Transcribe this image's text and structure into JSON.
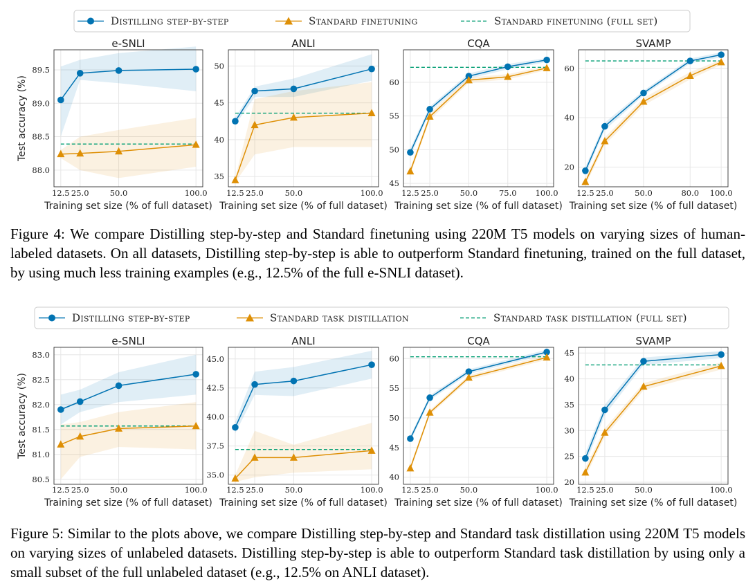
{
  "colors": {
    "distill": "#0173b2",
    "standard": "#de8f05",
    "fullset": "#029e73"
  },
  "captions": {
    "figure4": "Figure 4: We compare Distilling step-by-step and Standard finetuning using 220M T5 models on varying sizes of human-labeled datasets. On all datasets, Distilling step-by-step is able to outperform Standard finetuning, trained on the full dataset, by using much less training examples (e.g., 12.5% of the full e-SNLI dataset).",
    "figure5": "Figure 5: Similar to the plots above, we compare Distilling step-by-step and Standard task distillation using 220M T5 models on varying sizes of unlabeled datasets. Distilling step-by-step is able to outperform Standard task distillation by using only a small subset of the full unlabeled dataset (e.g., 12.5% on ANLI dataset)."
  },
  "chart_data": [
    {
      "type": "line",
      "figure": "Figure 4",
      "legend": [
        "Distilling step-by-step",
        "Standard finetuning",
        "Standard finetuning (full set)"
      ],
      "legend_position": "top-center",
      "grid": true,
      "ylabel": "Test accuracy (%)",
      "panels": [
        {
          "title": "e-SNLI",
          "xlabel": "Training set size (% of full dataset)",
          "xlim": [
            8.1,
            104.4
          ],
          "ylim": [
            87.75,
            89.8
          ],
          "xticks": [
            12.5,
            25.0,
            50.0,
            100.0
          ],
          "xtick_labels": [
            "12.5",
            "25.0",
            "50.0",
            "100.0"
          ],
          "yticks": [
            88.0,
            88.5,
            89.0,
            89.5
          ],
          "ytick_labels": [
            "88.0",
            "88.5",
            "89.0",
            "89.5"
          ],
          "series": [
            {
              "name": "Distilling step-by-step",
              "x": [
                12.5,
                25,
                50,
                100
              ],
              "y": [
                89.05,
                89.45,
                89.49,
                89.51
              ],
              "lower": [
                88.5,
                89.35,
                89.3,
                89.18
              ],
              "upper": [
                89.55,
                89.65,
                89.75,
                89.85
              ]
            },
            {
              "name": "Standard finetuning",
              "x": [
                12.5,
                25,
                50,
                100
              ],
              "y": [
                88.24,
                88.25,
                88.28,
                88.38
              ],
              "lower": [
                88.18,
                88.0,
                87.88,
                88.05
              ],
              "upper": [
                88.3,
                88.5,
                88.6,
                88.78
              ]
            }
          ],
          "full_set": 88.39
        },
        {
          "title": "ANLI",
          "xlabel": "Training set size (% of full dataset)",
          "xlim": [
            8.1,
            104.4
          ],
          "ylim": [
            33.6,
            52.2
          ],
          "xticks": [
            12.5,
            25.0,
            50.0,
            100.0
          ],
          "xtick_labels": [
            "12.5",
            "25.0",
            "50.0",
            "100.0"
          ],
          "yticks": [
            35,
            40,
            45,
            50
          ],
          "ytick_labels": [
            "35",
            "40",
            "45",
            "50"
          ],
          "series": [
            {
              "name": "Distilling step-by-step",
              "x": [
                12.5,
                25,
                50,
                100
              ],
              "y": [
                42.5,
                46.6,
                46.9,
                49.6
              ],
              "lower": [
                42.0,
                45.8,
                45.8,
                48.0
              ],
              "upper": [
                43.0,
                47.2,
                48.3,
                51.6
              ]
            },
            {
              "name": "Standard finetuning",
              "x": [
                12.5,
                25,
                50,
                100
              ],
              "y": [
                34.5,
                42.0,
                43.0,
                43.6
              ],
              "lower": [
                34.2,
                38.0,
                39.0,
                39.0
              ],
              "upper": [
                34.8,
                45.5,
                46.6,
                47.8
              ]
            }
          ],
          "full_set": 43.6
        },
        {
          "title": "CQA",
          "xlabel": "Training set size (% of full dataset)",
          "xlim": [
            8.1,
            104.4
          ],
          "ylim": [
            44.5,
            64.8
          ],
          "xticks": [
            12.5,
            25.0,
            50.0,
            75.0,
            100.0
          ],
          "xtick_labels": [
            "12.5",
            "25.0",
            "50.0",
            "75.0",
            "100.0"
          ],
          "yticks": [
            45,
            50,
            55,
            60
          ],
          "ytick_labels": [
            "45",
            "50",
            "55",
            "60"
          ],
          "series": [
            {
              "name": "Distilling step-by-step",
              "x": [
                12.5,
                25,
                50,
                75,
                100
              ],
              "y": [
                49.6,
                56.0,
                60.9,
                62.3,
                63.3
              ],
              "lower": [
                49.0,
                55.6,
                60.5,
                61.9,
                63.0
              ],
              "upper": [
                50.2,
                56.4,
                61.3,
                62.7,
                63.6
              ]
            },
            {
              "name": "Standard finetuning",
              "x": [
                12.5,
                25,
                50,
                75,
                100
              ],
              "y": [
                46.8,
                54.9,
                60.3,
                60.8,
                62.1
              ],
              "lower": [
                46.3,
                54.4,
                59.9,
                60.4,
                61.8
              ],
              "upper": [
                47.3,
                55.4,
                60.7,
                61.2,
                62.4
              ]
            }
          ],
          "full_set": 62.2
        },
        {
          "title": "SVAMP",
          "xlabel": "Training set size (% of full dataset)",
          "xlim": [
            8.1,
            104.4
          ],
          "ylim": [
            12.0,
            67.5
          ],
          "xticks": [
            12.5,
            25.0,
            50.0,
            80.0,
            100.0
          ],
          "xtick_labels": [
            "12.5",
            "25.0",
            "50.0",
            "80.0",
            "100.0"
          ],
          "yticks": [
            20,
            40,
            60
          ],
          "ytick_labels": [
            "20",
            "40",
            "60"
          ],
          "series": [
            {
              "name": "Distilling step-by-step",
              "x": [
                12.5,
                25,
                50,
                80,
                100
              ],
              "y": [
                18.5,
                36.5,
                50.0,
                63.0,
                65.5
              ],
              "lower": [
                17.0,
                35.0,
                49.0,
                62.0,
                64.5
              ],
              "upper": [
                20.0,
                38.0,
                51.0,
                64.0,
                66.5
              ]
            },
            {
              "name": "Standard finetuning",
              "x": [
                12.5,
                25,
                50,
                80,
                100
              ],
              "y": [
                14.0,
                30.5,
                46.5,
                57.0,
                62.5
              ],
              "lower": [
                12.5,
                29.0,
                45.0,
                55.5,
                61.5
              ],
              "upper": [
                15.5,
                32.0,
                48.0,
                58.5,
                63.5
              ]
            }
          ],
          "full_set": 63.0
        }
      ]
    },
    {
      "type": "line",
      "figure": "Figure 5",
      "legend": [
        "Distilling step-by-step",
        "Standard task distillation",
        "Standard task distillation (full set)"
      ],
      "legend_position": "top-center",
      "grid": true,
      "ylabel": "Test accuracy (%)",
      "panels": [
        {
          "title": "e-SNLI",
          "xlabel": "Training set size (% of full dataset)",
          "xlim": [
            8.1,
            104.4
          ],
          "ylim": [
            80.4,
            83.15
          ],
          "xticks": [
            12.5,
            25.0,
            50.0,
            100.0
          ],
          "xtick_labels": [
            "12.5",
            "25.0",
            "50.0",
            "100.0"
          ],
          "yticks": [
            80.5,
            81.0,
            81.5,
            82.0,
            82.5,
            83.0
          ],
          "ytick_labels": [
            "80.5",
            "81.0",
            "81.5",
            "82.0",
            "82.5",
            "83.0"
          ],
          "series": [
            {
              "name": "Distilling step-by-step",
              "x": [
                12.5,
                25,
                50,
                100
              ],
              "y": [
                81.9,
                82.06,
                82.38,
                82.61
              ],
              "lower": [
                81.6,
                81.85,
                82.05,
                82.2
              ],
              "upper": [
                82.2,
                82.3,
                82.65,
                83.0
              ]
            },
            {
              "name": "Standard task distillation",
              "x": [
                12.5,
                25,
                50,
                100
              ],
              "y": [
                81.2,
                81.36,
                81.52,
                81.57
              ],
              "lower": [
                80.5,
                80.95,
                81.15,
                81.1
              ],
              "upper": [
                81.6,
                81.65,
                81.85,
                82.05
              ]
            }
          ],
          "full_set": 81.57
        },
        {
          "title": "ANLI",
          "xlabel": "Training set size (% of full dataset)",
          "xlim": [
            8.1,
            104.4
          ],
          "ylim": [
            34.2,
            46.0
          ],
          "xticks": [
            12.5,
            25.0,
            50.0,
            100.0
          ],
          "xtick_labels": [
            "12.5",
            "25.0",
            "50.0",
            "100.0"
          ],
          "yticks": [
            35.0,
            37.5,
            40.0,
            42.5,
            45.0
          ],
          "ytick_labels": [
            "35.0",
            "37.5",
            "40.0",
            "42.5",
            "45.0"
          ],
          "series": [
            {
              "name": "Distilling step-by-step",
              "x": [
                12.5,
                25,
                50,
                100
              ],
              "y": [
                39.1,
                42.8,
                43.1,
                44.5
              ],
              "lower": [
                38.6,
                41.9,
                41.8,
                43.3
              ],
              "upper": [
                39.6,
                43.9,
                44.3,
                45.7
              ]
            },
            {
              "name": "Standard task distillation",
              "x": [
                12.5,
                25,
                50,
                100
              ],
              "y": [
                34.7,
                36.5,
                36.5,
                37.1
              ],
              "lower": [
                34.4,
                34.8,
                35.2,
                35.5
              ],
              "upper": [
                35.0,
                38.8,
                37.6,
                39.5
              ]
            }
          ],
          "full_set": 37.2
        },
        {
          "title": "CQA",
          "xlabel": "Training set size (% of full dataset)",
          "xlim": [
            8.1,
            104.4
          ],
          "ylim": [
            38.8,
            61.9
          ],
          "xticks": [
            12.5,
            25.0,
            50.0,
            100.0
          ],
          "xtick_labels": [
            "12.5",
            "25.0",
            "50.0",
            "100.0"
          ],
          "yticks": [
            40,
            45,
            50,
            55,
            60
          ],
          "ytick_labels": [
            "40",
            "45",
            "50",
            "55",
            "60"
          ],
          "series": [
            {
              "name": "Distilling step-by-step",
              "x": [
                12.5,
                25,
                50,
                100
              ],
              "y": [
                46.5,
                53.4,
                57.8,
                61.1
              ],
              "lower": [
                46.0,
                53.0,
                57.4,
                60.7
              ],
              "upper": [
                47.0,
                53.8,
                58.2,
                61.5
              ]
            },
            {
              "name": "Standard task distillation",
              "x": [
                12.5,
                25,
                50,
                100
              ],
              "y": [
                41.5,
                50.9,
                56.8,
                60.2
              ],
              "lower": [
                41.0,
                50.5,
                56.4,
                59.8
              ],
              "upper": [
                42.0,
                51.3,
                57.2,
                60.6
              ]
            }
          ],
          "full_set": 60.3
        },
        {
          "title": "SVAMP",
          "xlabel": "Training set size (% of full dataset)",
          "xlim": [
            8.1,
            104.4
          ],
          "ylim": [
            19.6,
            46.1
          ],
          "xticks": [
            12.5,
            25.0,
            50.0,
            100.0
          ],
          "xtick_labels": [
            "12.5",
            "25.0",
            "50.0",
            "100.0"
          ],
          "yticks": [
            20,
            25,
            30,
            35,
            40,
            45
          ],
          "ytick_labels": [
            "20",
            "25",
            "30",
            "35",
            "40",
            "45"
          ],
          "series": [
            {
              "name": "Distilling step-by-step",
              "x": [
                12.5,
                25,
                50,
                100
              ],
              "y": [
                24.6,
                34.0,
                43.4,
                44.7
              ],
              "lower": [
                23.5,
                33.0,
                42.7,
                44.0
              ],
              "upper": [
                25.7,
                35.0,
                44.1,
                45.4
              ]
            },
            {
              "name": "Standard task distillation",
              "x": [
                12.5,
                25,
                50,
                100
              ],
              "y": [
                21.9,
                29.6,
                38.5,
                42.5
              ],
              "lower": [
                21.0,
                28.8,
                37.8,
                41.8
              ],
              "upper": [
                22.8,
                30.4,
                39.2,
                43.2
              ]
            }
          ],
          "full_set": 42.7
        }
      ]
    }
  ]
}
